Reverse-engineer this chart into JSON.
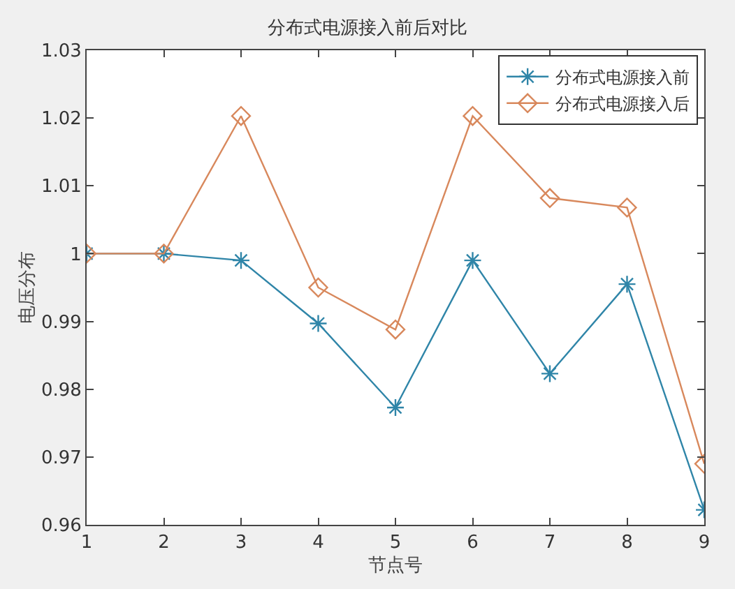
{
  "chart_data": {
    "type": "line",
    "title": "分布式电源接入前后对比",
    "xlabel": "节点号",
    "ylabel": "电压分布",
    "x": [
      1,
      2,
      3,
      4,
      5,
      6,
      7,
      8,
      9
    ],
    "series": [
      {
        "name": "分布式电源接入前",
        "color": "#2f85a8",
        "marker": "cross",
        "values": [
          1.0,
          1.0,
          0.999,
          0.9897,
          0.9773,
          0.999,
          0.9823,
          0.9955,
          0.9622
        ]
      },
      {
        "name": "分布式电源接入后",
        "color": "#d8885c",
        "marker": "diamond",
        "values": [
          1.0,
          1.0,
          1.0203,
          0.995,
          0.9888,
          1.0203,
          1.0082,
          1.0068,
          0.969
        ]
      }
    ],
    "xlim": [
      1,
      9
    ],
    "xticks": [
      1,
      2,
      3,
      4,
      5,
      6,
      7,
      8,
      9
    ],
    "ylim": [
      0.96,
      1.03
    ],
    "yticks": [
      0.96,
      0.97,
      0.98,
      0.99,
      1,
      1.01,
      1.02,
      1.03
    ],
    "grid": false,
    "legend": "top right",
    "line_style": "solid"
  }
}
